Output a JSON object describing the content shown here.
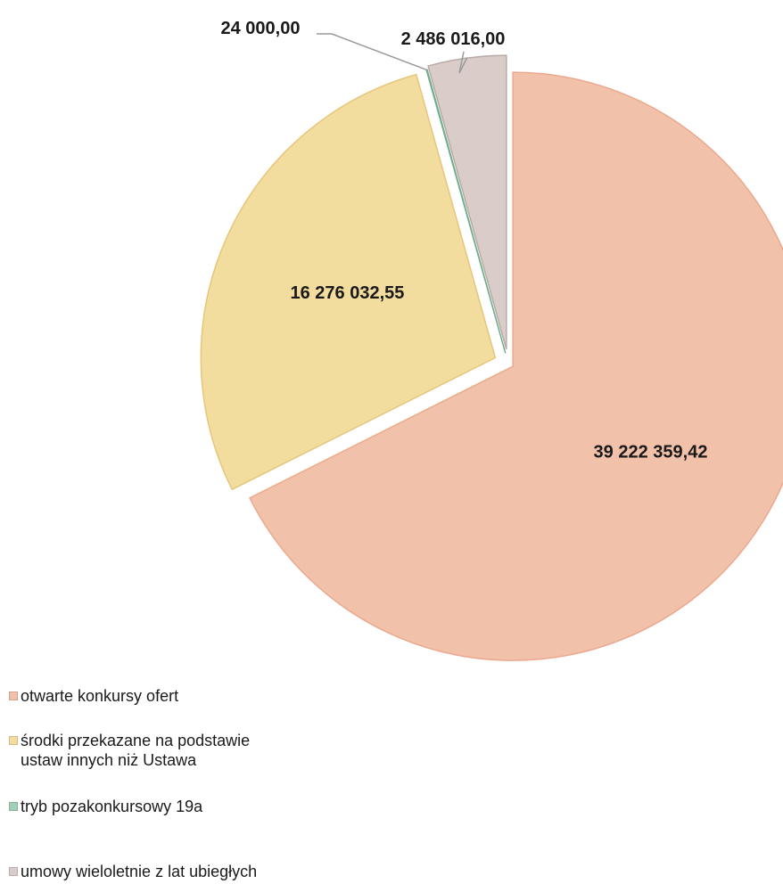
{
  "chart_data": {
    "type": "pie",
    "series": [
      {
        "name": "otwarte konkursy ofert",
        "value": 39222359.42,
        "label": "39 222 359,42",
        "color": "#f2c1aa"
      },
      {
        "name": "środki przekazane na podstawie ustaw innych niż Ustawa",
        "value": 16276032.55,
        "label": "16 276 032,55",
        "color": "#f2dc9e"
      },
      {
        "name": "tryb pozakonkursowy 19a",
        "value": 24000.0,
        "label": "24 000,00",
        "color": "#9fd0b6"
      },
      {
        "name": "umowy wieloletnie z lat ubiegłych",
        "value": 2486016.0,
        "label": "2 486 016,00",
        "color": "#d9ccc9"
      }
    ],
    "legend_position": "bottom-left",
    "exploded": true
  }
}
